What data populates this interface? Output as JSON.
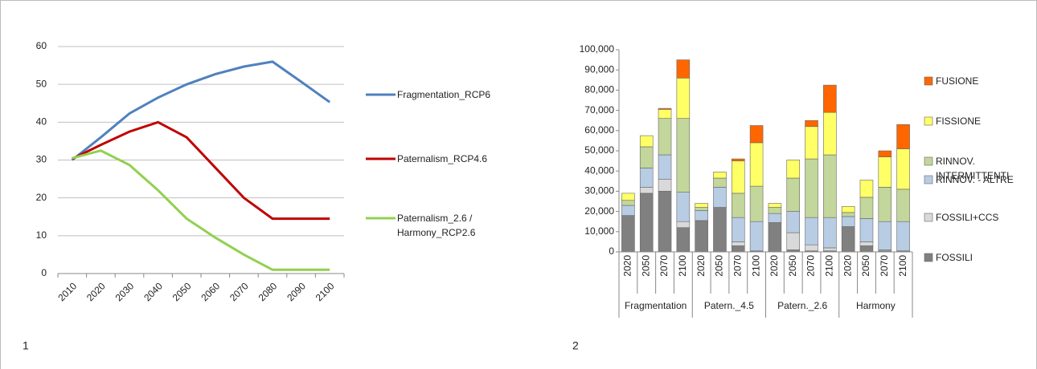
{
  "chart_data": [
    {
      "type": "line",
      "label": "1",
      "categories": [
        "2010",
        "2020",
        "2030",
        "2040",
        "2050",
        "2060",
        "2070",
        "2080",
        "2090",
        "2100"
      ],
      "series": [
        {
          "name": "Fragmentation_RCP6",
          "color": "#4f81bd",
          "values": [
            30,
            36,
            42.3,
            46.5,
            50,
            52.7,
            54.7,
            56,
            50.7,
            45.3
          ]
        },
        {
          "name": "Paternalism_RCP4.6",
          "color": "#c00000",
          "values": [
            30.3,
            34,
            37.5,
            40,
            36,
            28,
            20,
            14.5,
            14.5,
            14.5
          ]
        },
        {
          "name": "Paternalism_2.6 / Harmony_RCP2.6",
          "color": "#92d050",
          "values": [
            30.5,
            32.5,
            28.7,
            22,
            14.5,
            9.5,
            5,
            1,
            1,
            1
          ]
        }
      ],
      "ylim": [
        0,
        60
      ],
      "yticks": [
        0,
        10,
        20,
        30,
        40,
        50,
        60
      ],
      "grid": true
    },
    {
      "type": "bar",
      "label": "2",
      "stacked": true,
      "categories": [
        "2020",
        "2050",
        "2070",
        "2100",
        "2020",
        "2050",
        "2070",
        "2100",
        "2020",
        "2050",
        "2070",
        "2100",
        "2020",
        "2050",
        "2070",
        "2100"
      ],
      "groups": [
        "Fragmentation",
        "Patern._4.5",
        "Patern._2.6",
        "Harmony"
      ],
      "series": [
        {
          "name": "FOSSILI",
          "color": "#808080",
          "values": [
            18000,
            29000,
            30000,
            12000,
            15500,
            22000,
            3000,
            500,
            14500,
            1000,
            500,
            500,
            12500,
            3000,
            500,
            500
          ]
        },
        {
          "name": "FOSSILI+CCS",
          "color": "#d9d9d9",
          "values": [
            0,
            3000,
            6000,
            3000,
            0,
            0,
            2000,
            0,
            0,
            8500,
            3000,
            1500,
            0,
            2000,
            500,
            0
          ]
        },
        {
          "name": "RINNOV. - ALTRE",
          "color": "#b8cce4",
          "values": [
            5000,
            9500,
            12000,
            14500,
            5000,
            10000,
            12000,
            14500,
            4500,
            10500,
            13500,
            15000,
            5000,
            11500,
            14000,
            14500
          ]
        },
        {
          "name": "RINNOV. INTERMITTENTI",
          "color": "#c3d69b",
          "values": [
            2500,
            10500,
            18000,
            36500,
            1500,
            4500,
            12000,
            17500,
            3000,
            16500,
            29000,
            31000,
            2000,
            10500,
            17000,
            16000
          ]
        },
        {
          "name": "FISSIONE",
          "color": "#ffff66",
          "values": [
            3500,
            5500,
            4500,
            20000,
            2000,
            3000,
            16000,
            21500,
            2000,
            9000,
            16000,
            21000,
            3000,
            8500,
            15000,
            20000
          ]
        },
        {
          "name": "FUSIONE",
          "color": "#ff6600",
          "values": [
            0,
            0,
            500,
            9000,
            0,
            0,
            1000,
            8500,
            0,
            0,
            3000,
            13500,
            0,
            0,
            3000,
            12000
          ]
        }
      ],
      "ylim": [
        0,
        100000
      ],
      "yticks": [
        0,
        {
          "value": 10000,
          "label": "10,000"
        },
        {
          "value": 20000,
          "label": "20,000"
        },
        {
          "value": 30000,
          "label": "30,000"
        },
        {
          "value": 40000,
          "label": "40,000"
        },
        {
          "value": 50000,
          "label": "50,000"
        },
        {
          "value": 60000,
          "label": "60,000"
        },
        {
          "value": 70000,
          "label": "70,000"
        },
        {
          "value": 80000,
          "label": "80,000"
        },
        {
          "value": 90000,
          "label": "90,000"
        },
        {
          "value": 100000,
          "label": "100,000"
        }
      ],
      "grid": false
    }
  ]
}
